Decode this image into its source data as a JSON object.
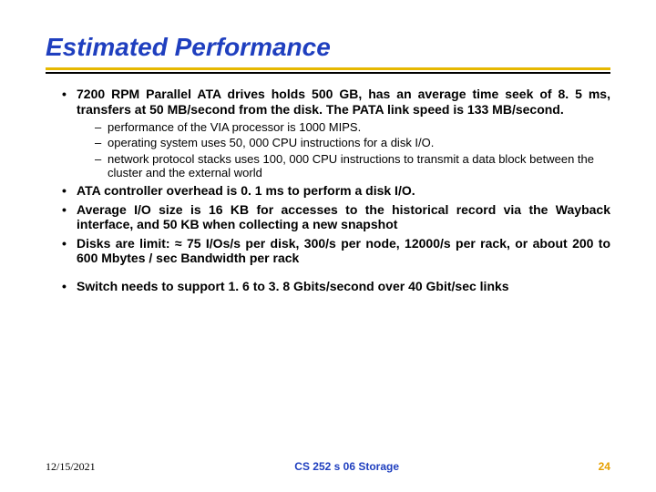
{
  "title": "Estimated Performance",
  "colors": {
    "title_color": "#1f3fbf",
    "rule_gold": "#e6b800",
    "rule_black": "#000000",
    "text_color": "#000000",
    "footer_course_color": "#1f3fbf",
    "footer_page_color": "#e6a000",
    "background": "#ffffff"
  },
  "bullets": {
    "b1": "7200 RPM Parallel ATA drives holds 500 GB, has an average time seek of 8. 5 ms, transfers at 50 MB/second from the disk. The PATA link speed is 133 MB/second.",
    "b1_sub1": "performance of the VIA processor is 1000 MIPS.",
    "b1_sub2": "operating system uses 50, 000 CPU instructions for a disk I/O.",
    "b1_sub3": "network protocol stacks uses 100, 000 CPU instructions to transmit a data block between the cluster and the external world",
    "b2": "ATA controller overhead is  0. 1 ms to perform a disk I/O.",
    "b3": "Average I/O size is 16 KB for accesses to the historical record via the Wayback interface, and 50 KB when collecting a new snapshot",
    "b4": "Disks are limit: ≈ 75 I/Os/s per disk, 300/s per node, 12000/s per rack, or about 200 to 600 Mbytes / sec Bandwidth per rack",
    "b5": "Switch needs to support 1. 6 to 3. 8 Gbits/second over 40 Gbit/sec links"
  },
  "footer": {
    "date": "12/15/2021",
    "course": "CS 252 s 06 Storage",
    "page": "24"
  }
}
